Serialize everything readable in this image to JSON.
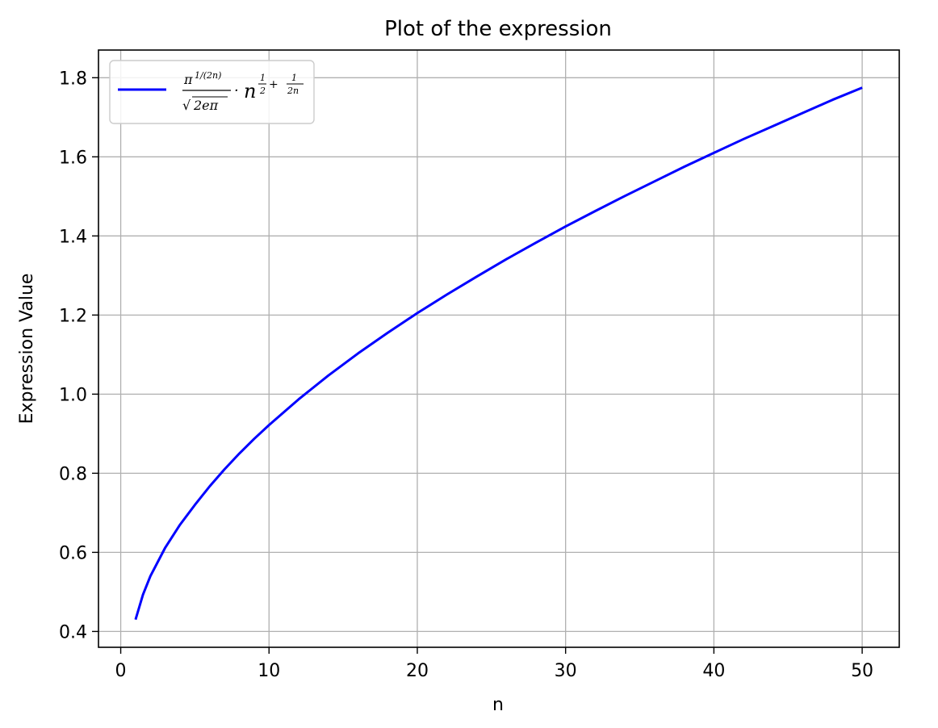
{
  "chart_data": {
    "type": "line",
    "title": "Plot of the expression",
    "xlabel": "n",
    "ylabel": "Expression Value",
    "xlim": [
      -1.5,
      52.5
    ],
    "ylim": [
      0.36,
      1.87
    ],
    "xticks": [
      0,
      10,
      20,
      30,
      40,
      50
    ],
    "xtick_labels": [
      "0",
      "10",
      "20",
      "30",
      "40",
      "50"
    ],
    "yticks": [
      0.4,
      0.6,
      0.8,
      1.0,
      1.2,
      1.4,
      1.6,
      1.8
    ],
    "ytick_labels": [
      "0.4",
      "0.6",
      "0.8",
      "1.0",
      "1.2",
      "1.4",
      "1.6",
      "1.8"
    ],
    "grid": true,
    "legend_position": "top-left",
    "series": [
      {
        "name": "π^{1/(2n)} / √(2eπ) · n^{1/2 + 1/(2n)}",
        "color": "#0000ff",
        "x": [
          1,
          1.5,
          2,
          3,
          4,
          5,
          6,
          7,
          8,
          9,
          10,
          12,
          14,
          16,
          18,
          20,
          22,
          24,
          26,
          28,
          30,
          32,
          34,
          36,
          38,
          40,
          42,
          44,
          46,
          48,
          50
        ],
        "y": [
          0.43,
          0.493,
          0.54,
          0.612,
          0.67,
          0.72,
          0.767,
          0.81,
          0.85,
          0.887,
          0.922,
          0.987,
          1.047,
          1.103,
          1.155,
          1.205,
          1.252,
          1.297,
          1.341,
          1.383,
          1.424,
          1.463,
          1.501,
          1.538,
          1.575,
          1.61,
          1.645,
          1.678,
          1.711,
          1.744,
          1.775
        ]
      }
    ]
  }
}
